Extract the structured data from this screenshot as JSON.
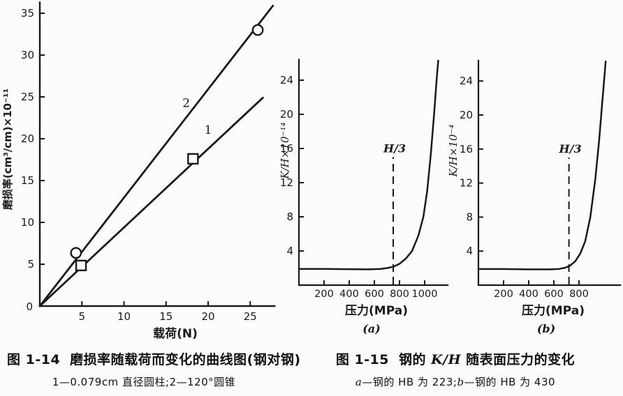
{
  "page": {
    "bg": "#fcfcfa",
    "ink": "#1a1a1a"
  },
  "captions": {
    "fig14": {
      "label": "图 1-14",
      "title": "磨损率随载荷而变化的曲线图(钢对钢)",
      "sub": "1—0.079cm 直径圆柱;2—120°圆锥"
    },
    "fig15": {
      "label": "图 1-15",
      "title_pre": "钢的 ",
      "title_kh": "K/H",
      "title_post": " 随表面压力的变化",
      "sub_a": "a",
      "sub_a_text": "—钢的 HB 为 223;",
      "sub_b": "b",
      "sub_b_text": "—钢的 HB 为 430"
    }
  },
  "chart_data": [
    {
      "id": "wear-load",
      "type": "line",
      "title": "磨损率随载荷而变化的曲线图(钢对钢)",
      "xlabel": "载荷(N)",
      "ylabel": "磨损率(cm³/cm)×10⁻¹¹",
      "xlim": [
        0,
        28
      ],
      "ylim": [
        0,
        36.4
      ],
      "xticks": [
        5,
        10,
        15,
        20,
        25
      ],
      "yticks": [
        5,
        10,
        15,
        20,
        25,
        30,
        35
      ],
      "origin_label": "0",
      "grid": false,
      "series": [
        {
          "name": "1",
          "meaning": "0.079cm 直径圆柱",
          "marker": "square",
          "line": [
            [
              0,
              0
            ],
            [
              26.5,
              24.9
            ]
          ],
          "points": [
            [
              4.9,
              4.85
            ],
            [
              18.2,
              17.6
            ]
          ],
          "label_pos": [
            20.0,
            20.6
          ]
        },
        {
          "name": "2",
          "meaning": "120°圆锥",
          "marker": "circle",
          "line": [
            [
              0,
              0
            ],
            [
              27.7,
              35.9
            ]
          ],
          "points": [
            [
              4.3,
              6.35
            ],
            [
              25.9,
              33.0
            ]
          ],
          "label_pos": [
            17.4,
            23.8
          ]
        }
      ]
    },
    {
      "id": "kh-a",
      "type": "line",
      "title": "钢的 K/H 随表面压力的变化 (a) 钢的 HB 为 223",
      "xlabel": "压力(MPa)",
      "ylabel": "K/H×10⁻¹⁴",
      "sublabel": "(a)",
      "xlim": [
        0,
        1190
      ],
      "ylim": [
        0,
        26.5
      ],
      "xticks": [
        200,
        400,
        600,
        800,
        1000
      ],
      "yticks": [
        4,
        8,
        12,
        16,
        20,
        24
      ],
      "grid": false,
      "dashed_x": 750,
      "dashed_top": 15,
      "dashed_label": "H/3",
      "curve": [
        [
          0,
          1.9
        ],
        [
          200,
          1.9
        ],
        [
          400,
          1.87
        ],
        [
          550,
          1.85
        ],
        [
          650,
          1.9
        ],
        [
          700,
          2.0
        ],
        [
          750,
          2.15
        ],
        [
          800,
          2.5
        ],
        [
          850,
          3.1
        ],
        [
          900,
          4.0
        ],
        [
          950,
          5.8
        ],
        [
          990,
          8.0
        ],
        [
          1020,
          11.0
        ],
        [
          1050,
          15.5
        ],
        [
          1075,
          20.0
        ],
        [
          1095,
          24.0
        ],
        [
          1108,
          26.3
        ]
      ]
    },
    {
      "id": "kh-b",
      "type": "line",
      "title": "钢的 K/H 随表面压力的变化 (b) 钢的 HB 为 430",
      "xlabel": "压力(MPa)",
      "ylabel": "K/H×10⁻⁴",
      "sublabel": "(b)",
      "xlim": [
        0,
        1135
      ],
      "ylim": [
        0,
        26.5
      ],
      "xticks": [
        200,
        400,
        600,
        800
      ],
      "yticks": [
        4,
        8,
        12,
        16,
        20,
        24
      ],
      "grid": false,
      "dashed_x": 720,
      "dashed_top": 15,
      "dashed_label": "H/3",
      "curve": [
        [
          0,
          1.9
        ],
        [
          200,
          1.9
        ],
        [
          400,
          1.85
        ],
        [
          560,
          1.85
        ],
        [
          640,
          1.9
        ],
        [
          690,
          2.05
        ],
        [
          730,
          2.3
        ],
        [
          770,
          2.8
        ],
        [
          810,
          3.7
        ],
        [
          850,
          5.2
        ],
        [
          890,
          8.0
        ],
        [
          930,
          12.5
        ],
        [
          960,
          17.0
        ],
        [
          985,
          21.5
        ],
        [
          1005,
          25.0
        ],
        [
          1012,
          26.3
        ]
      ]
    }
  ]
}
